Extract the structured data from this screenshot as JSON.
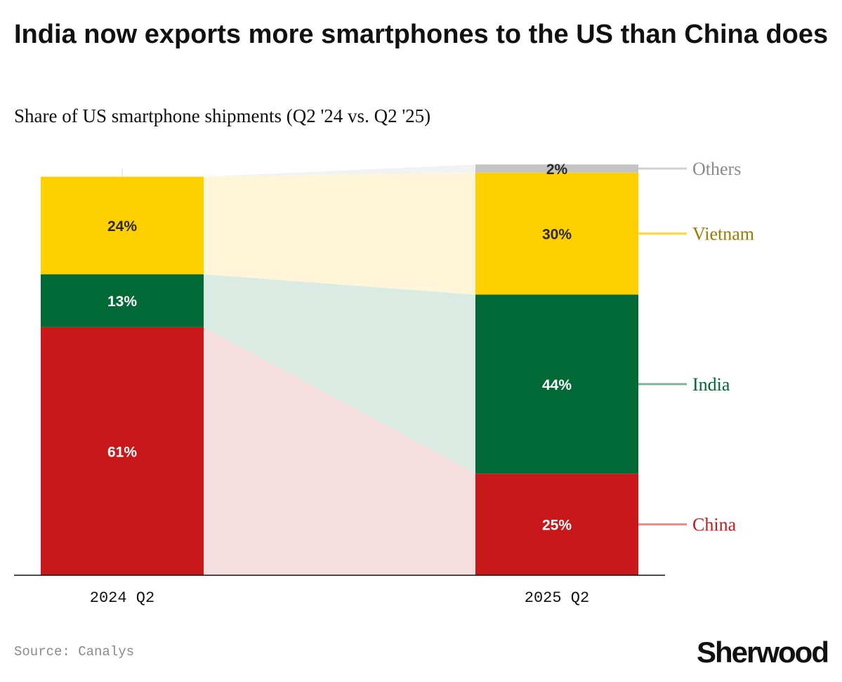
{
  "title": "India now exports more smartphones to the US than China does",
  "subtitle": "Share of US smartphone shipments (Q2 '24 vs. Q2 '25)",
  "source": "Source: Canalys",
  "brand": "Sherwood",
  "chart_data": {
    "type": "bar",
    "stacked": true,
    "categories": [
      "2024 Q2",
      "2025 Q2"
    ],
    "series": [
      {
        "name": "China",
        "values": [
          61,
          25
        ],
        "color": "#c8181a",
        "label_color": "#c8181a",
        "flow_color": "#f6dede"
      },
      {
        "name": "India",
        "values": [
          13,
          44
        ],
        "color": "#006935",
        "label_color": "#006935",
        "flow_color": "#d9ebe2"
      },
      {
        "name": "Vietnam",
        "values": [
          24,
          30
        ],
        "color": "#ffd000",
        "label_color": "#9c7a00",
        "flow_color": "#fff6d9"
      },
      {
        "name": "Others",
        "values": [
          null,
          2
        ],
        "color": "#c4c4c4",
        "label_color": "#8a8a8a",
        "flow_color": "#f1f2f4"
      }
    ],
    "data_labels": [
      [
        "61%",
        "25%"
      ],
      [
        "13%",
        "44%"
      ],
      [
        "24%",
        "30%"
      ],
      [
        "",
        "2%"
      ]
    ],
    "ylim": [
      0,
      100
    ],
    "grid": false,
    "legend": "right-side labels"
  }
}
